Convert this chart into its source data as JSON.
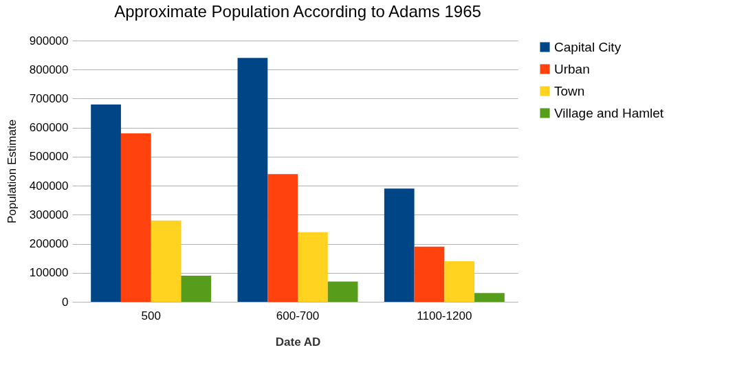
{
  "chart_data": {
    "type": "bar",
    "title": "Approximate Population According to Adams 1965",
    "xlabel": "Date AD",
    "ylabel": "Population Estimate",
    "categories": [
      "500",
      "600-700",
      "1100-1200"
    ],
    "series": [
      {
        "name": "Capital City",
        "color": "#004586",
        "values": [
          680000,
          840000,
          390000
        ]
      },
      {
        "name": "Urban",
        "color": "#ff420e",
        "values": [
          580000,
          440000,
          190000
        ]
      },
      {
        "name": "Town",
        "color": "#ffd320",
        "values": [
          280000,
          240000,
          140000
        ]
      },
      {
        "name": "Village and Hamlet",
        "color": "#579d1c",
        "values": [
          90000,
          70000,
          30000
        ]
      }
    ],
    "ylim": [
      0,
      900000
    ],
    "yticks": [
      0,
      100000,
      200000,
      300000,
      400000,
      500000,
      600000,
      700000,
      800000,
      900000
    ],
    "grid": "y",
    "legend": "right"
  }
}
